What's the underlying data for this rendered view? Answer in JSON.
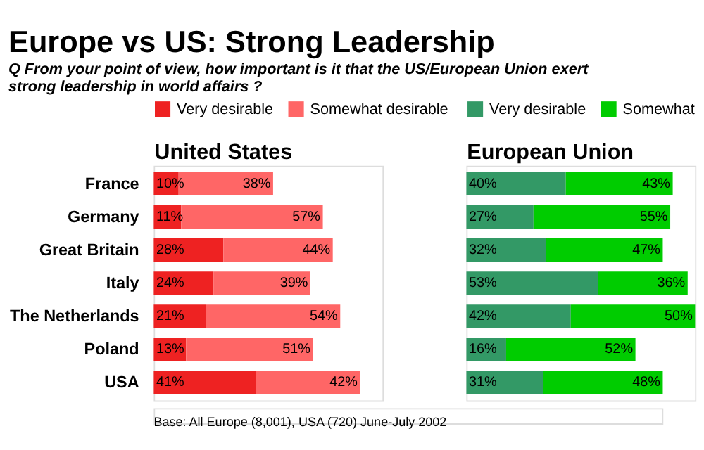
{
  "chart_data": [
    {
      "type": "bar",
      "orientation": "horizontal",
      "stacked": true,
      "title": "Europe vs US: Strong Leadership",
      "subtitle": "Q  From your point of view, how important is it that the US/European Union exert strong leadership in world affairs ?",
      "xlabel": "United States",
      "annotations": [
        "Base: All Europe (8,001), USA (720)  June-July 2002"
      ],
      "categories": [
        "France",
        "Germany",
        "Great Britain",
        "Italy",
        "The Netherlands",
        "Poland",
        "USA"
      ],
      "legend": "top",
      "grid": false,
      "tick_labels": "y",
      "series": [
        {
          "name": "Very desirable",
          "color": "#ee2222",
          "values": [
            10,
            11,
            28,
            24,
            21,
            13,
            41
          ],
          "value_labels": [
            "10%",
            "11%",
            "28%",
            "24%",
            "21%",
            "13%",
            "41%"
          ]
        },
        {
          "name": "Somewhat desirable",
          "color": "#ff6666",
          "values": [
            38,
            57,
            44,
            39,
            54,
            51,
            42
          ],
          "value_labels": [
            "38%",
            "57%",
            "44%",
            "39%",
            "54%",
            "51%",
            "42%"
          ]
        }
      ]
    },
    {
      "type": "bar",
      "orientation": "horizontal",
      "stacked": true,
      "xlabel": "European Union",
      "categories": [
        null,
        null,
        null,
        null,
        null,
        null,
        null
      ],
      "legend": "top",
      "grid": false,
      "tick_labels": false,
      "series": [
        {
          "name": "Very desirable",
          "color": "#339966",
          "values": [
            40,
            27,
            32,
            53,
            42,
            16,
            31
          ],
          "value_labels": [
            "40%",
            "27%",
            "32%",
            "53%",
            "42%",
            "16%",
            "31%"
          ]
        },
        {
          "name": "Somewhat",
          "color": "#00cc00",
          "values": [
            43,
            55,
            47,
            36,
            50,
            52,
            48
          ],
          "value_labels": [
            "43%",
            "55%",
            "47%",
            "36%",
            "50%",
            "52%",
            "48%"
          ]
        }
      ]
    }
  ]
}
